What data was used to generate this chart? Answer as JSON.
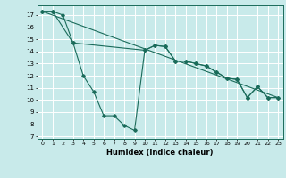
{
  "title": "",
  "xlabel": "Humidex (Indice chaleur)",
  "background_color": "#c8eaea",
  "grid_color": "#ffffff",
  "line_color": "#1a6b5a",
  "xlim": [
    -0.5,
    23.5
  ],
  "ylim": [
    6.8,
    17.8
  ],
  "yticks": [
    7,
    8,
    9,
    10,
    11,
    12,
    13,
    14,
    15,
    16,
    17
  ],
  "xticks": [
    0,
    1,
    2,
    3,
    4,
    5,
    6,
    7,
    8,
    9,
    10,
    11,
    12,
    13,
    14,
    15,
    16,
    17,
    18,
    19,
    20,
    21,
    22,
    23
  ],
  "series1_x": [
    0,
    1,
    2,
    3,
    4,
    5,
    6,
    7,
    8,
    9,
    10,
    11,
    12,
    13,
    14,
    15,
    16,
    17,
    18,
    19,
    20,
    21,
    22,
    23
  ],
  "series1_y": [
    17.3,
    17.3,
    17.0,
    14.7,
    12.0,
    10.7,
    8.7,
    8.7,
    7.9,
    7.5,
    14.1,
    14.5,
    14.4,
    13.2,
    13.2,
    13.0,
    12.8,
    12.3,
    11.8,
    11.7,
    10.2,
    11.1,
    10.2,
    10.2
  ],
  "series2_x": [
    0,
    1,
    3,
    10,
    11,
    12,
    13,
    14,
    15,
    16,
    17,
    18,
    19,
    20,
    21,
    22,
    23
  ],
  "series2_y": [
    17.3,
    17.3,
    14.7,
    14.1,
    14.5,
    14.4,
    13.2,
    13.2,
    13.0,
    12.8,
    12.3,
    11.8,
    11.7,
    10.2,
    11.1,
    10.2,
    10.2
  ],
  "series3_x": [
    0,
    23
  ],
  "series3_y": [
    17.3,
    10.2
  ]
}
